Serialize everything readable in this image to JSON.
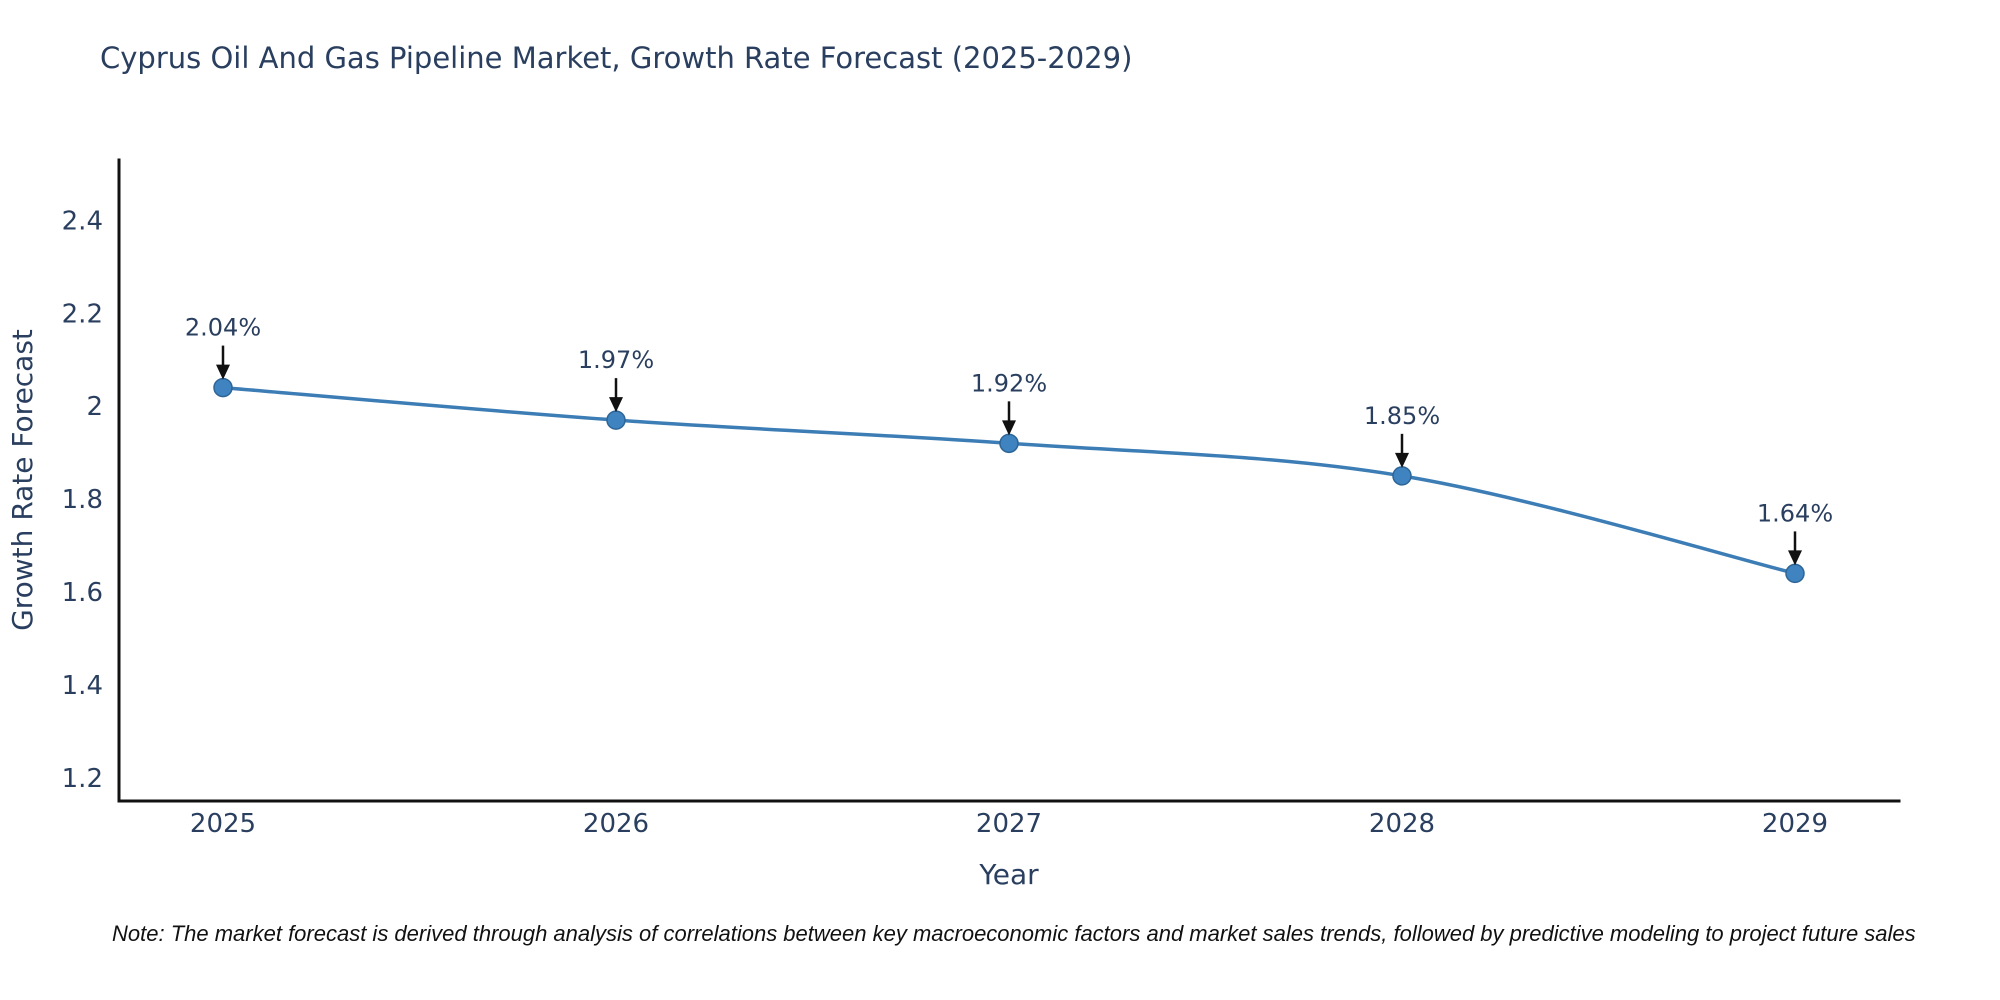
{
  "chart_data": {
    "type": "line",
    "title": "Cyprus Oil And Gas Pipeline Market, Growth Rate Forecast (2025-2029)",
    "xlabel": "Year",
    "ylabel": "Growth Rate Forecast",
    "categories": [
      "2025",
      "2026",
      "2027",
      "2028",
      "2029"
    ],
    "series": [
      {
        "name": "Growth Rate Forecast",
        "values": [
          2.04,
          1.97,
          1.92,
          1.85,
          1.64
        ]
      }
    ],
    "point_labels": [
      "2.04%",
      "1.97%",
      "1.92%",
      "1.85%",
      "1.64%"
    ],
    "ytick_values": [
      1.2,
      1.4,
      1.6,
      1.8,
      2,
      2.2,
      2.4
    ],
    "ytick_labels": [
      "1.2",
      "1.4",
      "1.6",
      "1.8",
      "2",
      "2.2",
      "2.4"
    ],
    "ylim": [
      1.15,
      2.53
    ],
    "grid": false,
    "legend": "none",
    "line_shape": "spline",
    "note": "Note: The market forecast is derived through analysis of correlations between key macroeconomic factors and market sales trends, followed by predictive modeling to project future sales",
    "colors": {
      "line": "#3d7db5",
      "marker": "#3f84c0",
      "marker_edge": "#2e6597",
      "arrow": "#111111",
      "text": "#2a3f5f",
      "axis": "#111111",
      "background": "#ffffff"
    }
  }
}
